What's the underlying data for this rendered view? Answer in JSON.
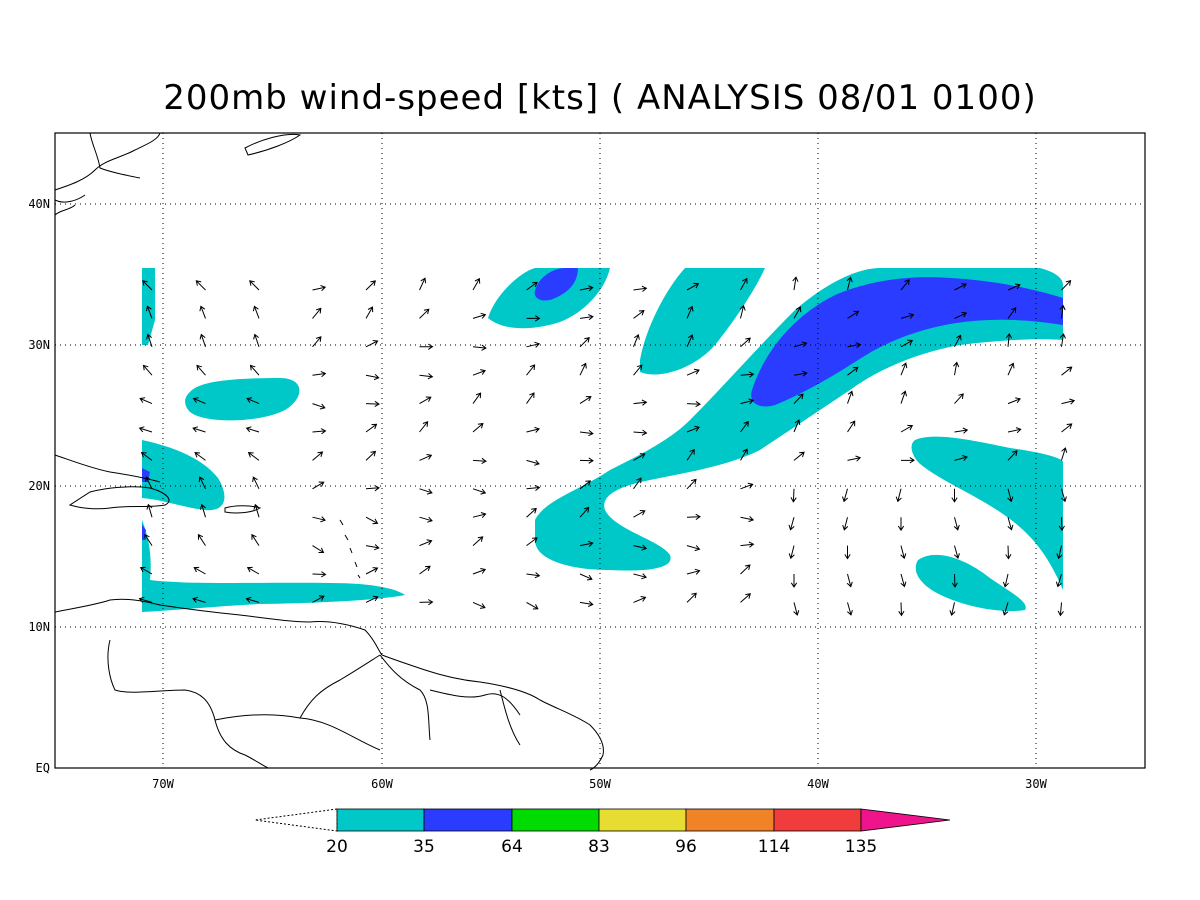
{
  "title": "200mb wind-speed [kts] ( ANALYSIS 08/01 0100)",
  "map": {
    "type": "contour",
    "lon_range": [
      -75,
      -25
    ],
    "lat_range": [
      0,
      45
    ],
    "grid": true,
    "lat_labels": [
      "40N",
      "30N",
      "20N",
      "10N",
      "EQ"
    ],
    "lon_labels": [
      "70W",
      "60W",
      "50W",
      "40W",
      "30W"
    ]
  },
  "colorbar": {
    "thresholds": [
      "20",
      "35",
      "64",
      "83",
      "96",
      "114",
      "135"
    ],
    "colors": [
      "#00c8c8",
      "#2a3cff",
      "#00dc00",
      "#e6dc32",
      "#f08228",
      "#f03c3c",
      "#f0148c"
    ]
  }
}
